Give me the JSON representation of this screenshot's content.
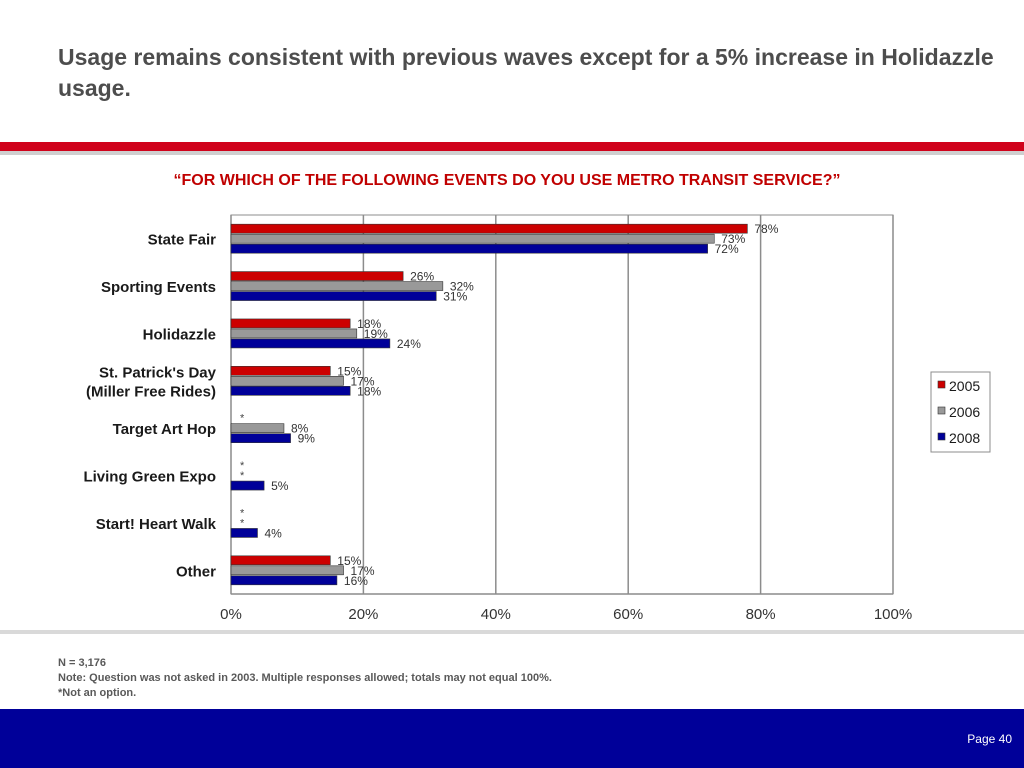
{
  "slide": {
    "headline": "Usage remains consistent with previous waves except for a 5% increase in Holidazzle usage.",
    "question": "“FOR WHICH OF THE FOLLOWING EVENTS DO YOU USE METRO TRANSIT SERVICE?”",
    "notes": [
      "N = 3,176",
      "Note: Question was not asked in 2003. Multiple responses allowed; totals may not equal 100%.",
      "*Not an option."
    ],
    "page": "Page 40"
  },
  "colors": {
    "accent_red": "#d0021b",
    "question_red": "#c00000",
    "footer_blue": "#000099"
  },
  "chart_data": {
    "type": "bar",
    "orientation": "horizontal",
    "categories": [
      [
        "State Fair"
      ],
      [
        "Sporting Events"
      ],
      [
        "Holidazzle"
      ],
      [
        "St. Patrick's Day",
        "(Miller Free Rides)"
      ],
      [
        "Target Art Hop"
      ],
      [
        "Living Green Expo"
      ],
      [
        "Start! Heart Walk"
      ],
      [
        "Other"
      ]
    ],
    "series": [
      {
        "name": "2005",
        "color": "#cc0000",
        "values": [
          78,
          26,
          18,
          15,
          null,
          null,
          null,
          15
        ]
      },
      {
        "name": "2006",
        "color": "#999999",
        "values": [
          73,
          32,
          19,
          17,
          8,
          null,
          null,
          17
        ]
      },
      {
        "name": "2008",
        "color": "#000099",
        "values": [
          72,
          31,
          24,
          18,
          9,
          5,
          4,
          16
        ]
      }
    ],
    "not_option_mark": "*",
    "value_suffix": "%",
    "xlim": [
      0,
      100
    ],
    "xticks": [
      0,
      20,
      40,
      60,
      80,
      100
    ],
    "xtick_labels": [
      "0%",
      "20%",
      "40%",
      "60%",
      "80%",
      "100%"
    ],
    "grid": true,
    "legend_position": "right"
  }
}
